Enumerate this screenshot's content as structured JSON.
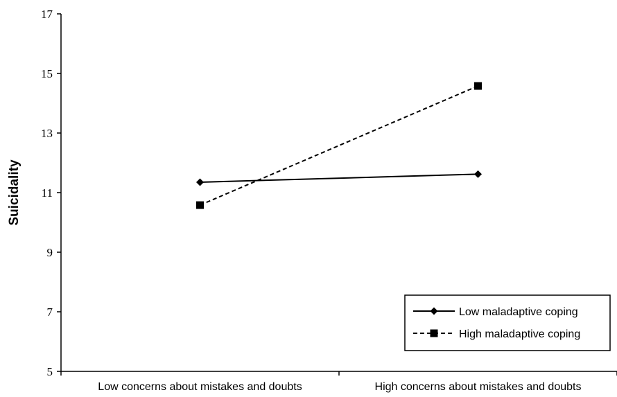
{
  "chart_data": {
    "type": "line",
    "title": "",
    "xlabel": "",
    "ylabel": "Suicidality",
    "ylim": [
      5,
      17
    ],
    "yticks": [
      "5",
      "7",
      "9",
      "11",
      "13",
      "15",
      "17"
    ],
    "categories": [
      "Low concerns about mistakes and doubts",
      "High concerns about mistakes and doubts"
    ],
    "grid": false,
    "legend_position": "bottom-right",
    "series": [
      {
        "name": "Low maladaptive coping",
        "values": [
          11.35,
          11.62
        ],
        "marker": "diamond",
        "line_style": "solid",
        "color": "#000000"
      },
      {
        "name": "High maladaptive coping",
        "values": [
          10.58,
          14.58
        ],
        "marker": "square",
        "line_style": "dashed",
        "color": "#000000"
      }
    ]
  }
}
